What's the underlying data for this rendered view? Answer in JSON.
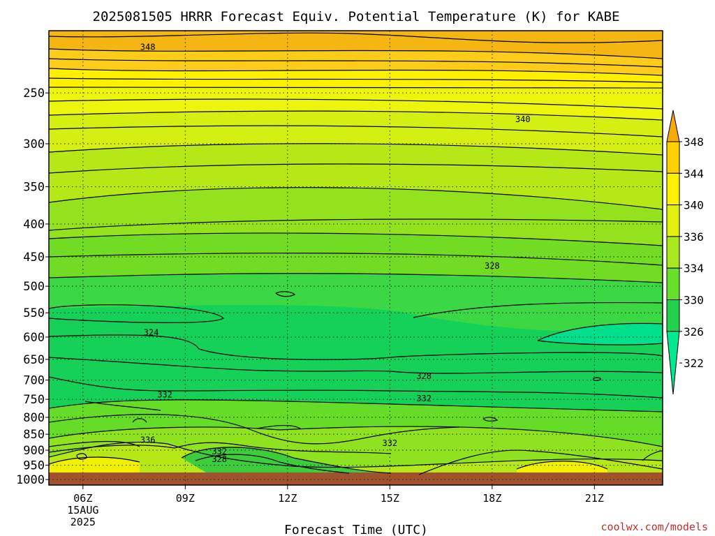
{
  "chart_data": {
    "type": "contour",
    "title": "2025081505 HRRR Forecast Equiv. Potential Temperature (K) for KABE",
    "xlabel": "Forecast Time (UTC)",
    "ylabel": "",
    "x_ticks": [
      "06Z",
      "09Z",
      "12Z",
      "15Z",
      "18Z",
      "21Z"
    ],
    "x_tick_hours": [
      6,
      9,
      12,
      15,
      18,
      21
    ],
    "x_range_hours": [
      5,
      23
    ],
    "date_label_lines": [
      "15AUG",
      "2025"
    ],
    "y_axis": "pressure (hPa), log scale, inverted",
    "y_ticks": [
      250,
      300,
      350,
      400,
      450,
      500,
      550,
      600,
      650,
      700,
      750,
      800,
      850,
      900,
      950,
      1000
    ],
    "y_range_hpa": [
      200,
      1020
    ],
    "colorbar_ticks": [
      348,
      344,
      340,
      336,
      334,
      330,
      326,
      322
    ],
    "colorbar_colors": [
      "#f5a90a",
      "#ffd000",
      "#fff200",
      "#e2f210",
      "#a8e81c",
      "#66e02a",
      "#22d04c",
      "#00e890"
    ],
    "contour_labels": [
      {
        "value": "348",
        "hour": 7.9,
        "hpa": 212
      },
      {
        "value": "340",
        "hour": 18.9,
        "hpa": 275
      },
      {
        "value": "328",
        "hour": 18.0,
        "hpa": 465
      },
      {
        "value": "324",
        "hour": 8.0,
        "hpa": 590
      },
      {
        "value": "328",
        "hour": 16.0,
        "hpa": 690
      },
      {
        "value": "332",
        "hour": 8.4,
        "hpa": 738
      },
      {
        "value": "332",
        "hour": 16.0,
        "hpa": 748
      },
      {
        "value": "336",
        "hour": 7.9,
        "hpa": 868
      },
      {
        "value": "332",
        "hour": 15.0,
        "hpa": 878
      },
      {
        "value": "332",
        "hour": 10.0,
        "hpa": 905
      },
      {
        "value": "328",
        "hour": 10.0,
        "hpa": 930
      }
    ]
  },
  "credit": "coolwx.com/models"
}
